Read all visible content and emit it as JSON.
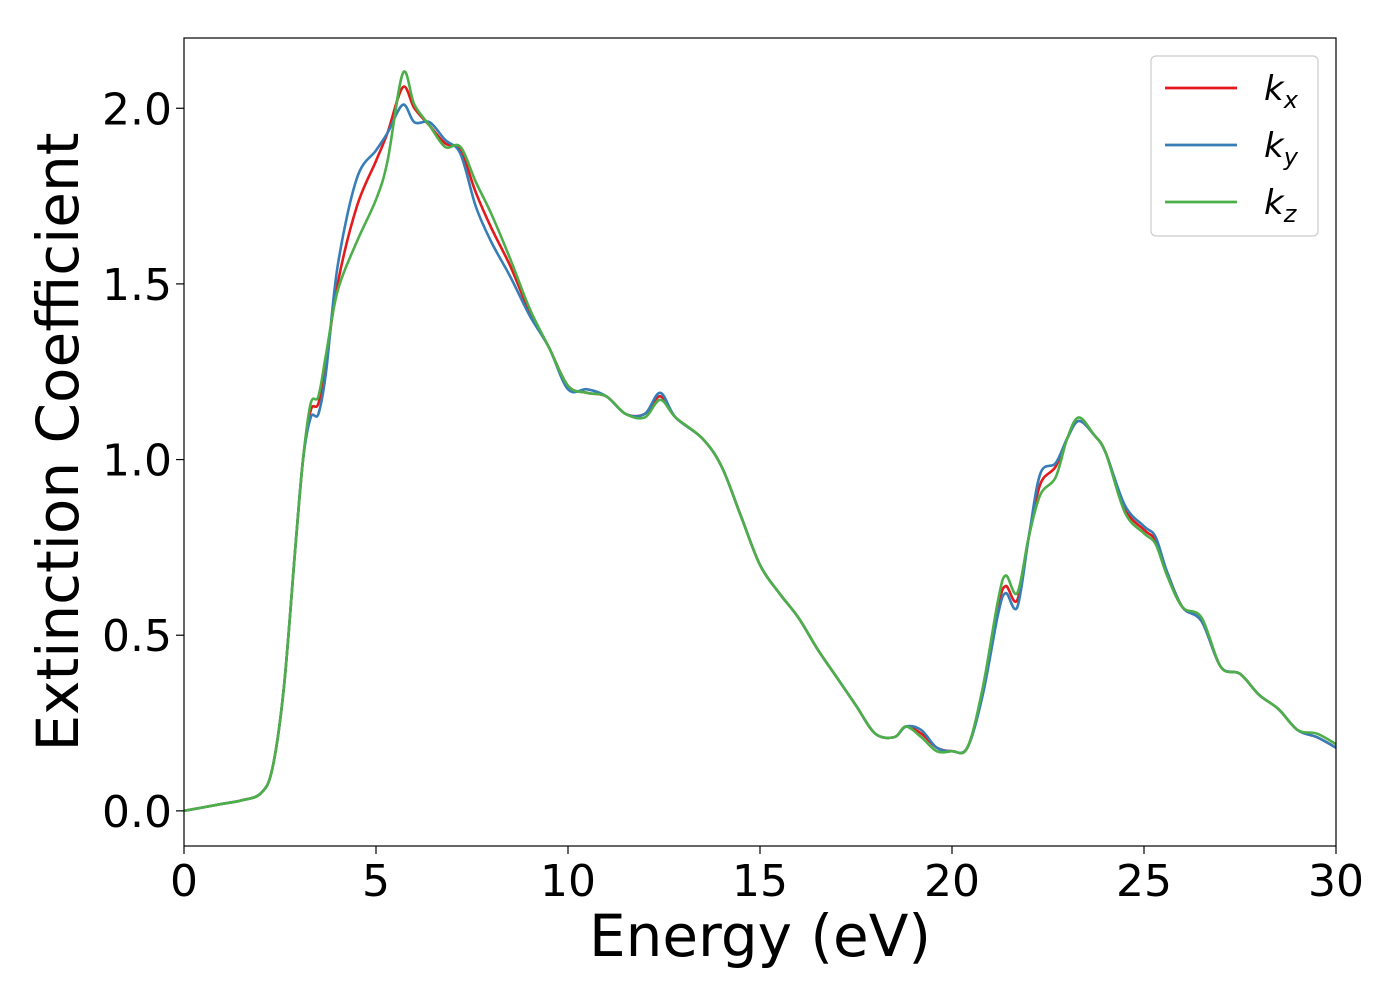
{
  "chart_data": {
    "type": "line",
    "title": "",
    "xlabel": "Energy (eV)",
    "ylabel": "Extinction Coefficient",
    "xlim": [
      0,
      30
    ],
    "ylim": [
      -0.1,
      2.2
    ],
    "xticks": [
      "0",
      "5",
      "10",
      "15",
      "20",
      "25",
      "30"
    ],
    "yticks": [
      "0.0",
      "0.5",
      "1.0",
      "1.5",
      "2.0"
    ],
    "grid": false,
    "legend_position": "top-right",
    "x": [
      0,
      1,
      1.5,
      2,
      2.3,
      2.6,
      2.9,
      3.1,
      3.3,
      3.5,
      3.7,
      4,
      4.5,
      5,
      5.3,
      5.7,
      6,
      6.4,
      6.8,
      7.2,
      7.6,
      8,
      8.5,
      9,
      9.5,
      10,
      10.5,
      11,
      11.5,
      12,
      12.4,
      12.8,
      13.5,
      14,
      14.5,
      15,
      15.5,
      16,
      16.5,
      17,
      17.5,
      18,
      18.5,
      18.8,
      19.2,
      19.6,
      20,
      20.4,
      20.8,
      21.2,
      21.4,
      21.7,
      22,
      22.3,
      22.7,
      23,
      23.3,
      23.7,
      24,
      24.5,
      25,
      25.3,
      25.6,
      26,
      26.5,
      27,
      27.5,
      28,
      28.5,
      29,
      29.5,
      30
    ],
    "series": [
      {
        "name": "k_x",
        "label_base": "k",
        "label_sub": "x",
        "color": "#e41a1c",
        "values": [
          0.0,
          0.02,
          0.03,
          0.05,
          0.12,
          0.35,
          0.75,
          1.0,
          1.14,
          1.16,
          1.28,
          1.5,
          1.72,
          1.85,
          1.93,
          2.06,
          2.0,
          1.95,
          1.9,
          1.88,
          1.76,
          1.66,
          1.55,
          1.42,
          1.32,
          1.21,
          1.19,
          1.18,
          1.13,
          1.13,
          1.18,
          1.12,
          1.06,
          0.98,
          0.84,
          0.7,
          0.62,
          0.55,
          0.46,
          0.38,
          0.3,
          0.22,
          0.21,
          0.24,
          0.22,
          0.18,
          0.17,
          0.18,
          0.34,
          0.58,
          0.64,
          0.6,
          0.78,
          0.93,
          0.98,
          1.06,
          1.11,
          1.07,
          1.02,
          0.86,
          0.8,
          0.77,
          0.68,
          0.58,
          0.54,
          0.41,
          0.39,
          0.33,
          0.29,
          0.23,
          0.21,
          0.18
        ]
      },
      {
        "name": "k_y",
        "label_base": "k",
        "label_sub": "y",
        "color": "#377eb8",
        "values": [
          0.0,
          0.02,
          0.03,
          0.05,
          0.12,
          0.35,
          0.75,
          1.0,
          1.12,
          1.13,
          1.25,
          1.55,
          1.8,
          1.88,
          1.93,
          2.01,
          1.96,
          1.96,
          1.91,
          1.87,
          1.72,
          1.62,
          1.52,
          1.41,
          1.32,
          1.2,
          1.2,
          1.18,
          1.13,
          1.13,
          1.19,
          1.12,
          1.06,
          0.98,
          0.84,
          0.7,
          0.62,
          0.55,
          0.46,
          0.38,
          0.3,
          0.22,
          0.21,
          0.24,
          0.23,
          0.18,
          0.17,
          0.18,
          0.33,
          0.56,
          0.62,
          0.58,
          0.78,
          0.96,
          0.99,
          1.06,
          1.11,
          1.07,
          1.02,
          0.87,
          0.81,
          0.78,
          0.68,
          0.58,
          0.54,
          0.41,
          0.39,
          0.33,
          0.29,
          0.23,
          0.21,
          0.18
        ]
      },
      {
        "name": "k_z",
        "label_base": "k",
        "label_sub": "z",
        "color": "#4daf4a",
        "values": [
          0.0,
          0.02,
          0.03,
          0.05,
          0.12,
          0.35,
          0.75,
          1.0,
          1.16,
          1.18,
          1.3,
          1.48,
          1.62,
          1.74,
          1.85,
          2.1,
          2.01,
          1.95,
          1.89,
          1.89,
          1.79,
          1.7,
          1.57,
          1.43,
          1.32,
          1.21,
          1.19,
          1.18,
          1.13,
          1.12,
          1.17,
          1.12,
          1.06,
          0.98,
          0.84,
          0.7,
          0.62,
          0.55,
          0.46,
          0.38,
          0.3,
          0.22,
          0.21,
          0.24,
          0.21,
          0.17,
          0.17,
          0.18,
          0.35,
          0.6,
          0.67,
          0.62,
          0.78,
          0.9,
          0.95,
          1.06,
          1.12,
          1.07,
          1.02,
          0.85,
          0.79,
          0.76,
          0.67,
          0.58,
          0.55,
          0.41,
          0.39,
          0.33,
          0.29,
          0.23,
          0.22,
          0.19
        ]
      }
    ]
  }
}
